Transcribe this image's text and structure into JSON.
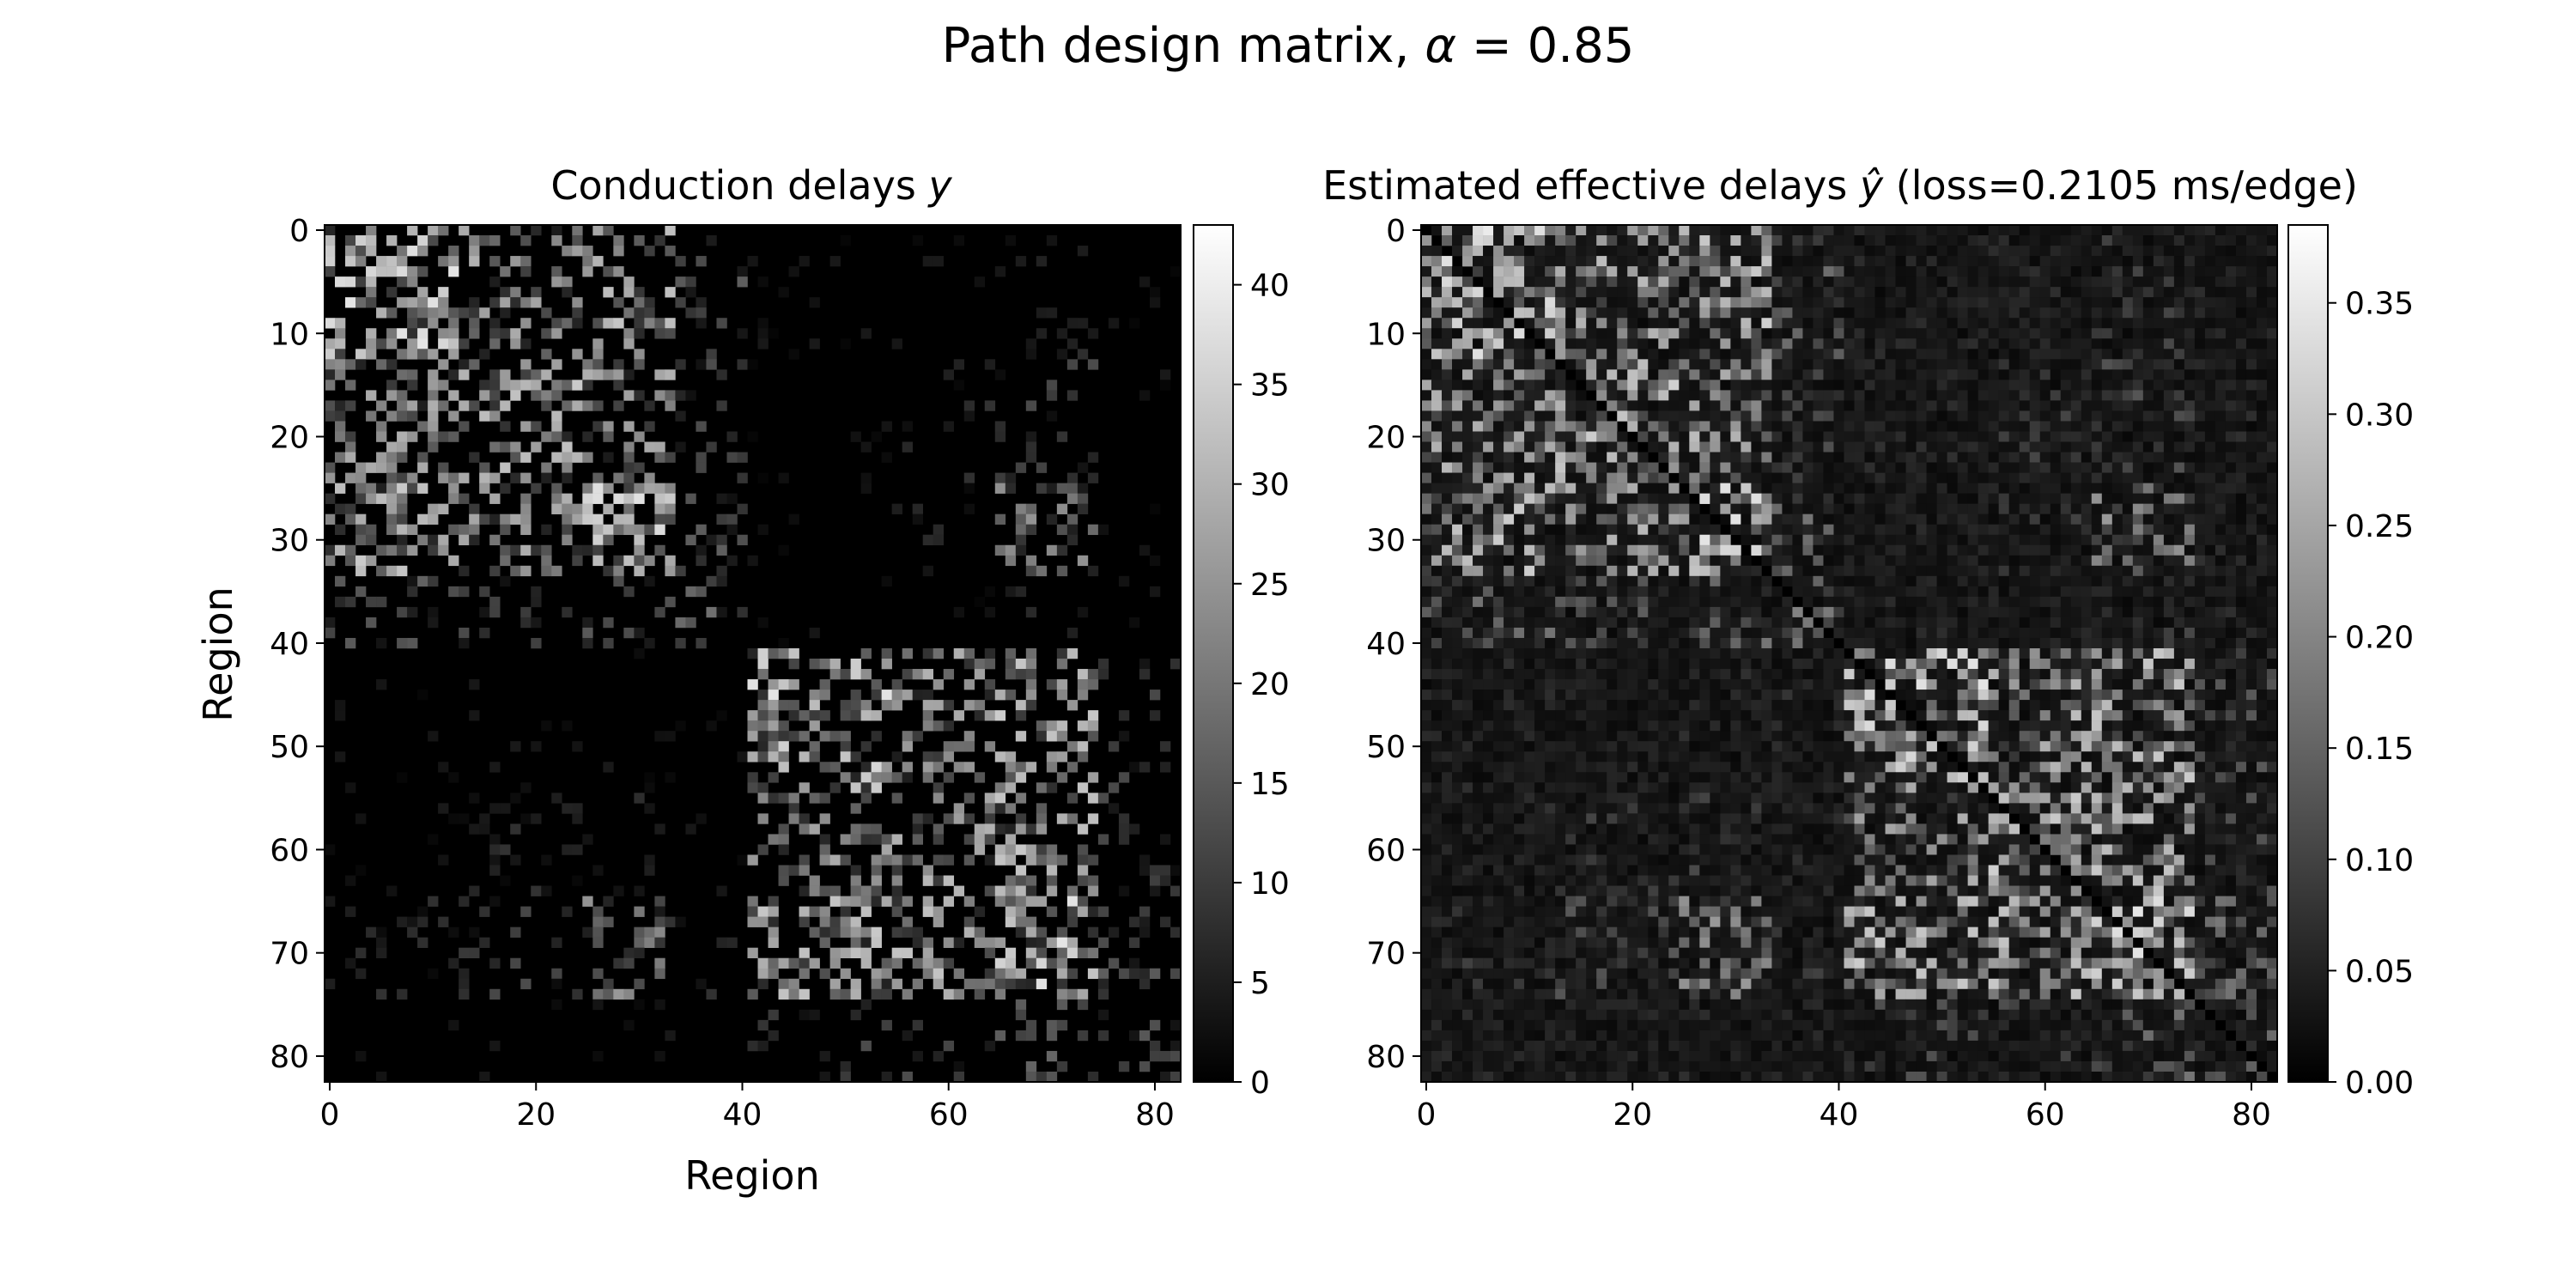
{
  "figure": {
    "title_prefix": "Path design matrix, ",
    "title_symbol": "α",
    "title_suffix": " = 0.85"
  },
  "chart_data": [
    {
      "type": "heatmap",
      "title_prefix": "Conduction delays ",
      "title_symbol": "y",
      "title_suffix": "",
      "xlabel": "Region",
      "ylabel": "Region",
      "n": 83,
      "x_ticks": [
        0,
        20,
        40,
        60,
        80
      ],
      "y_ticks": [
        0,
        10,
        20,
        30,
        40,
        50,
        60,
        70,
        80
      ],
      "colorbar": {
        "min": 0,
        "max": 43,
        "ticks": [
          0,
          5,
          10,
          15,
          20,
          25,
          30,
          35,
          40
        ]
      },
      "colormap": "gray",
      "diagonal_zero": false,
      "note": "sparse values, bright clusters in blocks of regions 0-40 and 41-82"
    },
    {
      "type": "heatmap",
      "title_prefix": "Estimated effective delays ",
      "title_symbol": "ŷ",
      "title_suffix": " (loss=0.2105 ms/edge)",
      "xlabel": "",
      "ylabel": "",
      "n": 83,
      "x_ticks": [
        0,
        20,
        40,
        60,
        80
      ],
      "y_ticks": [
        0,
        10,
        20,
        30,
        40,
        50,
        60,
        70,
        80
      ],
      "colorbar": {
        "min": 0,
        "max": 0.385,
        "ticks": [
          "0.00",
          "0.05",
          "0.10",
          "0.15",
          "0.20",
          "0.25",
          "0.30",
          "0.35"
        ]
      },
      "colormap": "gray",
      "diagonal_zero": true,
      "note": "dense low background with bright clusters mirroring the left matrix"
    }
  ]
}
